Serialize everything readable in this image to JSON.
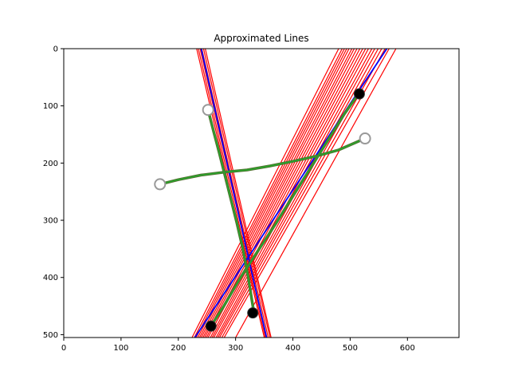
{
  "chart_data": {
    "type": "line",
    "title": "Approximated Lines",
    "xlabel": "",
    "ylabel": "",
    "xlim": [
      0,
      690
    ],
    "ylim": [
      505,
      0
    ],
    "y_inverted": true,
    "grid": false,
    "x_ticks": [
      0,
      100,
      200,
      300,
      400,
      500,
      600
    ],
    "y_ticks": [
      0,
      100,
      200,
      300,
      400,
      500
    ],
    "colors": {
      "approximations": "#ff0000",
      "fitted": "#0000ff",
      "curves": "#2ca02c",
      "curve_outline": "#556b2f",
      "start_marker": "#ffffff",
      "end_marker": "#000000"
    },
    "approximations": [
      {
        "x": [
          224,
          480
        ],
        "y": [
          505,
          0
        ]
      },
      {
        "x": [
          228,
          486
        ],
        "y": [
          505,
          0
        ]
      },
      {
        "x": [
          231,
          490
        ],
        "y": [
          505,
          0
        ]
      },
      {
        "x": [
          234,
          494
        ],
        "y": [
          505,
          0
        ]
      },
      {
        "x": [
          237,
          498
        ],
        "y": [
          505,
          0
        ]
      },
      {
        "x": [
          240,
          503
        ],
        "y": [
          505,
          0
        ]
      },
      {
        "x": [
          243,
          507
        ],
        "y": [
          505,
          0
        ]
      },
      {
        "x": [
          246,
          512
        ],
        "y": [
          505,
          0
        ]
      },
      {
        "x": [
          249,
          517
        ],
        "y": [
          505,
          0
        ]
      },
      {
        "x": [
          252,
          522
        ],
        "y": [
          505,
          0
        ]
      },
      {
        "x": [
          256,
          527
        ],
        "y": [
          505,
          0
        ]
      },
      {
        "x": [
          259,
          532
        ],
        "y": [
          505,
          0
        ]
      },
      {
        "x": [
          262,
          538
        ],
        "y": [
          505,
          0
        ]
      },
      {
        "x": [
          266,
          543
        ],
        "y": [
          505,
          0
        ]
      },
      {
        "x": [
          269,
          549
        ],
        "y": [
          505,
          0
        ]
      },
      {
        "x": [
          272,
          555
        ],
        "y": [
          505,
          0
        ]
      },
      {
        "x": [
          276,
          561
        ],
        "y": [
          505,
          0
        ]
      },
      {
        "x": [
          280,
          568
        ],
        "y": [
          505,
          0
        ]
      },
      {
        "x": [
          300,
          580
        ],
        "y": [
          505,
          0
        ]
      },
      {
        "x": [
          232,
          350
        ],
        "y": [
          0,
          505
        ]
      },
      {
        "x": [
          235,
          352
        ],
        "y": [
          0,
          505
        ]
      },
      {
        "x": [
          238,
          354
        ],
        "y": [
          0,
          505
        ]
      },
      {
        "x": [
          241,
          357
        ],
        "y": [
          0,
          505
        ]
      },
      {
        "x": [
          244,
          360
        ],
        "y": [
          0,
          505
        ]
      },
      {
        "x": [
          247,
          362
        ],
        "y": [
          0,
          505
        ]
      }
    ],
    "fitted": [
      {
        "x": [
          229,
          564
        ],
        "y": [
          505,
          0
        ]
      },
      {
        "x": [
          240,
          354
        ],
        "y": [
          0,
          505
        ]
      }
    ],
    "curves": [
      {
        "x": [
          168,
          200,
          240,
          280,
          320,
          360,
          400,
          440,
          480,
          526
        ],
        "y": [
          237,
          229,
          221,
          216,
          212,
          205,
          197,
          188,
          177,
          157
        ]
      },
      {
        "x": [
          252,
          262,
          272,
          282,
          292,
          302,
          312,
          322,
          332
        ],
        "y": [
          107,
          146,
          184,
          224,
          264,
          304,
          347,
          400,
          462
        ]
      },
      {
        "x": [
          257,
          280,
          310,
          340,
          370,
          400,
          430,
          460,
          490,
          516
        ],
        "y": [
          485,
          449,
          398,
          352,
          306,
          258,
          210,
          162,
          114,
          77
        ]
      }
    ],
    "start_markers": {
      "x": [
        168,
        526,
        252
      ],
      "y": [
        237,
        157,
        107
      ]
    },
    "end_markers": {
      "x": [
        330,
        257,
        516
      ],
      "y": [
        462,
        485,
        79
      ]
    }
  }
}
